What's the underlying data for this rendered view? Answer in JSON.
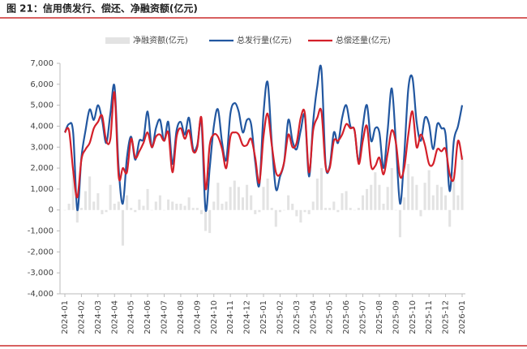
{
  "chart_data": {
    "type": "bar-line",
    "title": "图 21：信用债发行、偿还、净融资额(亿元)",
    "categories": [
      "2024-01",
      null,
      null,
      null,
      "2024-02",
      null,
      null,
      null,
      "2024-03",
      null,
      null,
      null,
      "2024-04",
      null,
      null,
      null,
      "2024-05",
      null,
      null,
      null,
      "2024-06",
      null,
      null,
      null,
      "2024-07",
      null,
      null,
      null,
      "2024-08",
      null,
      null,
      null,
      "2024-09",
      null,
      null,
      null,
      "2024-10",
      null,
      null,
      null,
      "2024-11",
      null,
      null,
      null,
      "2024-12",
      null,
      null,
      null,
      "2025-01",
      null,
      null,
      null,
      "2025-02",
      null,
      null,
      null,
      "2025-03",
      null,
      null,
      null,
      "2025-04",
      null,
      null,
      null,
      "2025-05",
      null,
      null,
      null,
      "2025-06",
      null,
      null,
      null,
      "2025-07",
      null,
      null,
      null,
      "2025-08",
      null,
      null,
      null,
      "2025-09",
      null,
      null,
      null,
      "2025-10",
      null,
      null,
      null,
      "2025-11",
      null,
      null,
      null,
      "2025-12",
      null,
      null,
      null,
      "2026-01"
    ],
    "series": [
      {
        "name": "净融资额(亿元)",
        "kind": "bar",
        "color": "#e3e3e3",
        "values": [
          0,
          300,
          1800,
          -600,
          100,
          900,
          1600,
          400,
          800,
          -200,
          -100,
          1200,
          300,
          400,
          -1700,
          700,
          100,
          -100,
          500,
          200,
          1000,
          0,
          400,
          700,
          0,
          500,
          400,
          300,
          300,
          200,
          600,
          100,
          100,
          -200,
          -1000,
          -1100,
          400,
          1300,
          300,
          400,
          1100,
          1400,
          1100,
          600,
          1200,
          700,
          -200,
          -100,
          1100,
          1500,
          100,
          -800,
          -100,
          0,
          700,
          300,
          -300,
          -600,
          -100,
          -200,
          400,
          1500,
          2000,
          100,
          100,
          400,
          -100,
          800,
          900,
          100,
          0,
          100,
          700,
          1000,
          1200,
          1800,
          1200,
          300,
          1100,
          2000,
          0,
          -1300,
          600,
          2200,
          1600,
          1200,
          -300,
          1300,
          1900,
          700,
          1200,
          1100,
          700,
          -800,
          1800,
          700,
          2600
        ]
      },
      {
        "name": "总发行量(亿元)",
        "kind": "line",
        "color": "#2257a0",
        "values": [
          3700,
          4100,
          3700,
          0,
          2500,
          3800,
          4800,
          4300,
          5000,
          4300,
          3200,
          4600,
          5900,
          2000,
          300,
          2500,
          3500,
          2400,
          3300,
          3400,
          4700,
          3000,
          3900,
          4300,
          3300,
          4200,
          2200,
          3800,
          4200,
          3600,
          4400,
          2900,
          3100,
          4200,
          0,
          2000,
          4000,
          4800,
          3200,
          2400,
          4600,
          5100,
          4700,
          3700,
          4300,
          4100,
          2300,
          1200,
          4600,
          6100,
          3200,
          1000,
          1600,
          2300,
          4300,
          3300,
          2900,
          3800,
          4500,
          1600,
          4200,
          5900,
          6700,
          2200,
          2100,
          3700,
          3200,
          4400,
          5000,
          4000,
          3800,
          2300,
          4000,
          5000,
          3300,
          3900,
          3700,
          2000,
          3800,
          5800,
          3200,
          300,
          2600,
          5800,
          6300,
          4200,
          3300,
          4400,
          4100,
          2900,
          4100,
          3900,
          3600,
          900,
          3300,
          4000,
          5000
        ]
      },
      {
        "name": "总偿还量(亿元)",
        "kind": "line",
        "color": "#d4202a",
        "values": [
          3700,
          3800,
          1900,
          600,
          2400,
          2900,
          3200,
          3900,
          4200,
          4500,
          3300,
          3400,
          5600,
          1600,
          2000,
          1800,
          3400,
          2500,
          2800,
          3200,
          3700,
          3000,
          3500,
          3600,
          3300,
          3700,
          1800,
          3500,
          3900,
          3400,
          3800,
          2800,
          3000,
          4400,
          1000,
          3100,
          3600,
          3500,
          2900,
          2000,
          3500,
          3700,
          3600,
          3100,
          3100,
          3400,
          2500,
          1300,
          3500,
          4600,
          3100,
          1800,
          1700,
          2300,
          3600,
          3000,
          3200,
          4400,
          4600,
          1800,
          3800,
          4400,
          4700,
          2100,
          2000,
          3300,
          3300,
          3600,
          4100,
          3900,
          3800,
          2200,
          3300,
          4000,
          2100,
          2100,
          2500,
          1700,
          2700,
          3800,
          3200,
          1600,
          2000,
          3600,
          4700,
          3000,
          3600,
          3100,
          2200,
          2200,
          2900,
          2800,
          2900,
          1700,
          1500,
          3300,
          2400
        ]
      }
    ],
    "ylim": [
      -4000,
      7000
    ],
    "yticks": [
      {
        "value": -4000,
        "label": "-4,000"
      },
      {
        "value": -3000,
        "label": "-3,000"
      },
      {
        "value": -2000,
        "label": "-2,000"
      },
      {
        "value": -1000,
        "label": "-1,000"
      },
      0,
      {
        "value": 1000,
        "label": "1,000"
      },
      {
        "value": 2000,
        "label": "2,000"
      },
      {
        "value": 3000,
        "label": "3,000"
      },
      {
        "value": 4000,
        "label": "4,000"
      },
      {
        "value": 5000,
        "label": "5,000"
      },
      {
        "value": 6000,
        "label": "6,000"
      },
      {
        "value": 7000,
        "label": "7,000"
      }
    ],
    "legend": "top",
    "grid": false
  }
}
